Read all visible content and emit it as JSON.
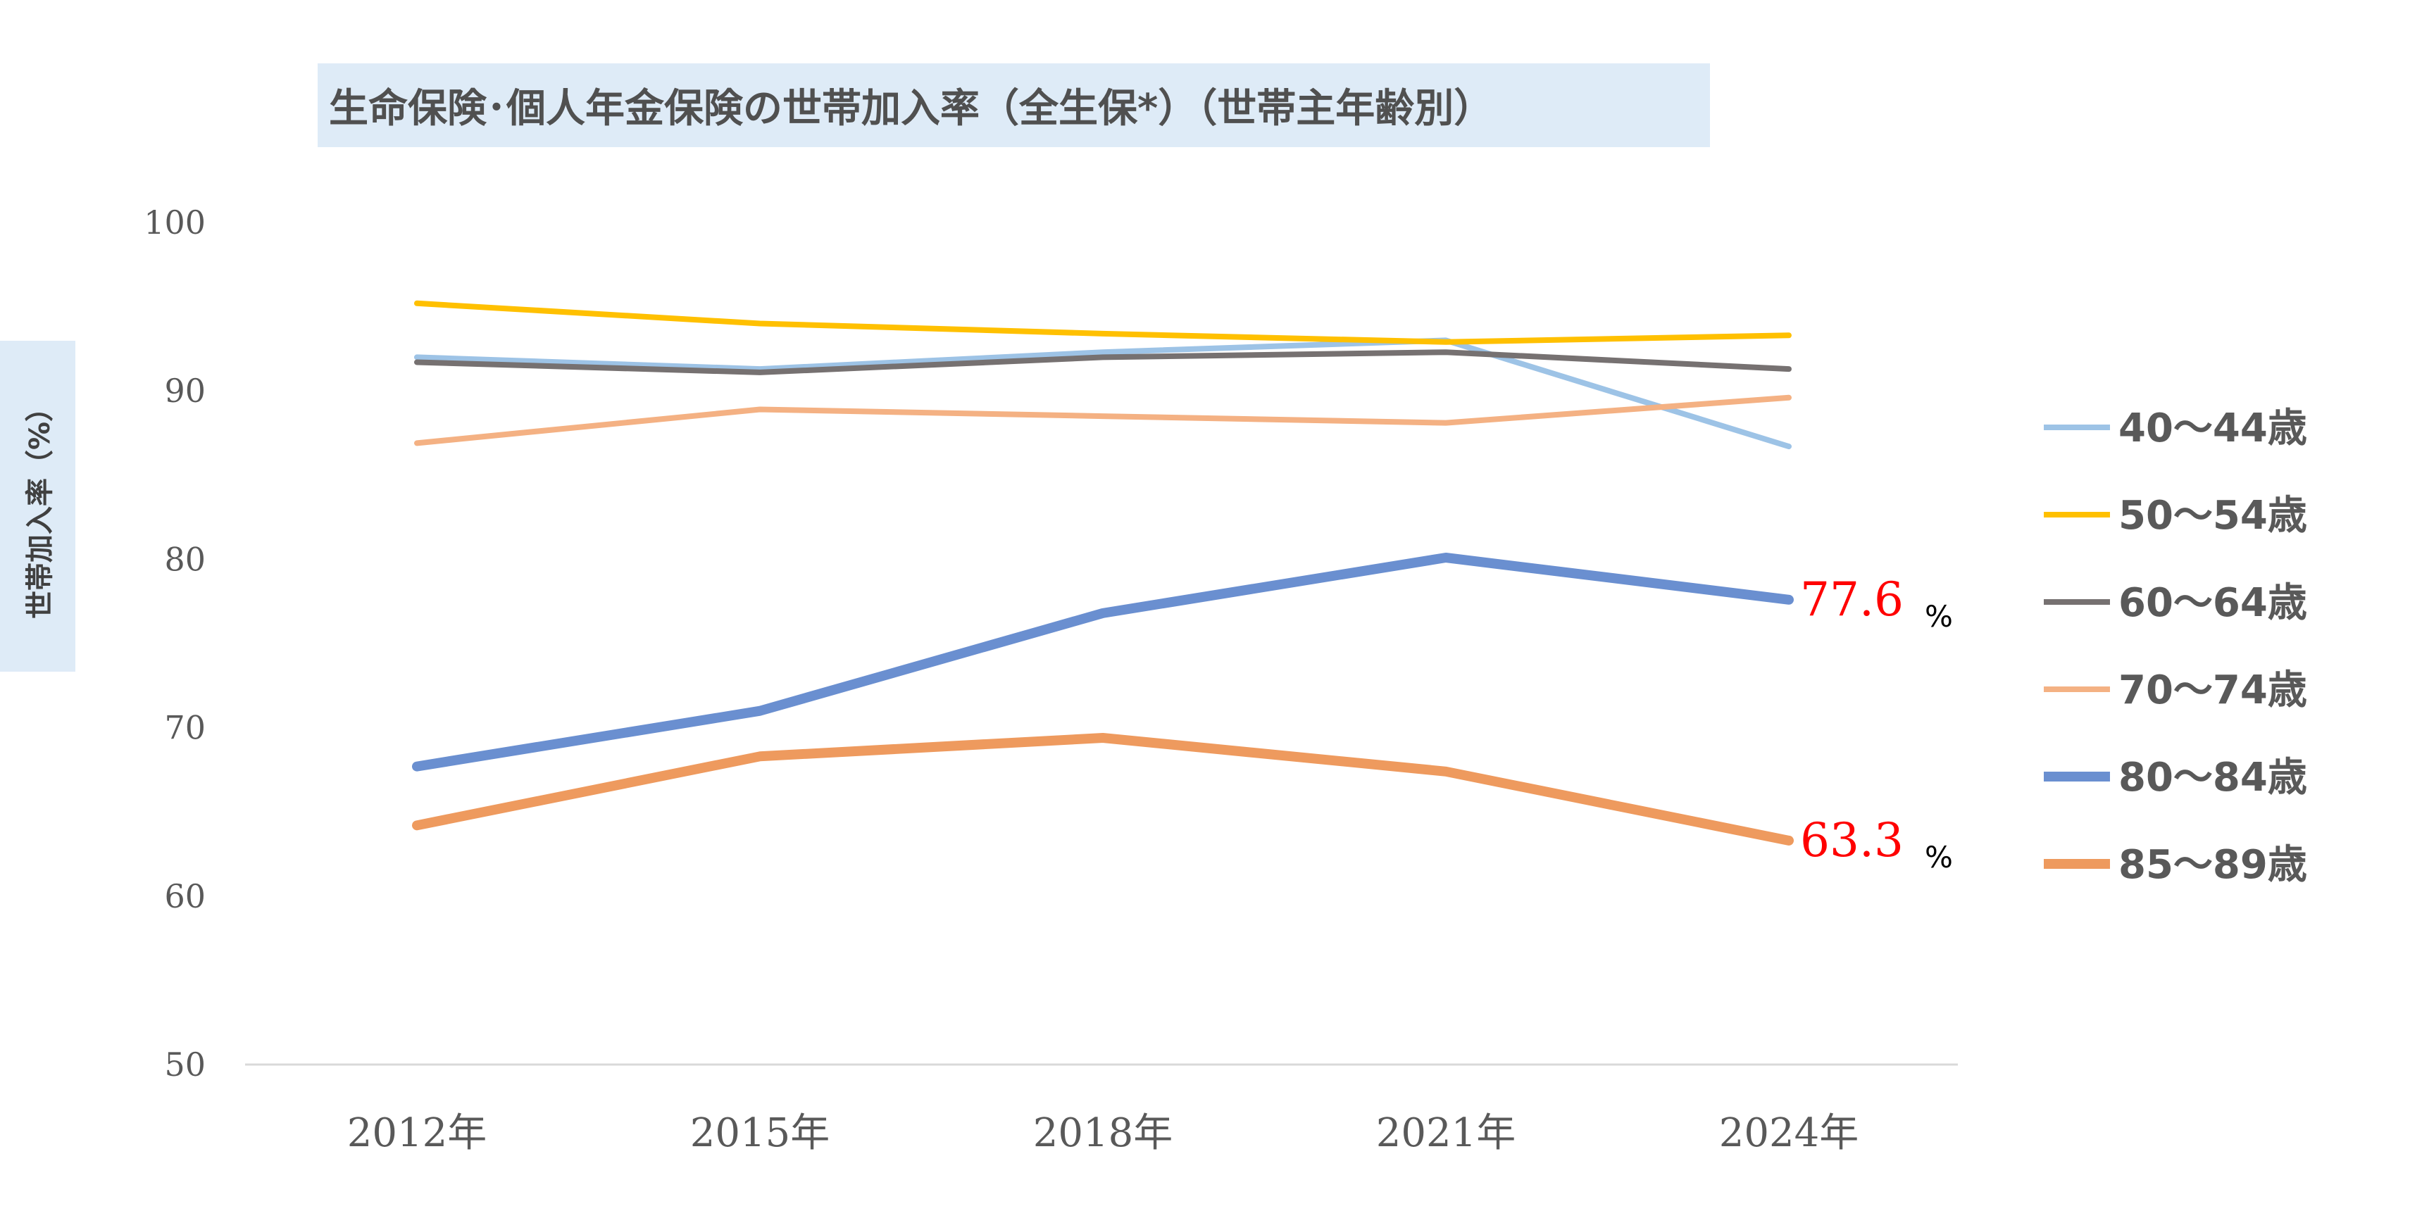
{
  "chart_data": {
    "type": "line",
    "title": "生命保険･個人年金保険の世帯加入率（全生保*）（世帯主年齢別）",
    "ylabel": "世帯加入率（%）",
    "xlabel": "",
    "categories": [
      "2012年",
      "2015年",
      "2018年",
      "2021年",
      "2024年"
    ],
    "ylim": [
      50,
      100
    ],
    "yticks": [
      50,
      60,
      70,
      80,
      90,
      100
    ],
    "grid": false,
    "legend_position": "right",
    "series": [
      {
        "name": "40～44歳",
        "color": "#9dc3e6",
        "emphasis": false,
        "values": [
          92.0,
          91.3,
          92.3,
          93.0,
          86.7
        ]
      },
      {
        "name": "50～54歳",
        "color": "#ffc000",
        "emphasis": false,
        "values": [
          95.2,
          94.0,
          93.4,
          92.9,
          93.3
        ]
      },
      {
        "name": "60～64歳",
        "color": "#767171",
        "emphasis": false,
        "values": [
          91.7,
          91.1,
          92.0,
          92.3,
          91.3
        ]
      },
      {
        "name": "70～74歳",
        "color": "#f4b183",
        "emphasis": false,
        "values": [
          86.9,
          88.9,
          88.5,
          88.1,
          89.6
        ]
      },
      {
        "name": "80～84歳",
        "color": "#6a8fd0",
        "emphasis": true,
        "values": [
          67.7,
          71.0,
          76.8,
          80.1,
          77.6
        ]
      },
      {
        "name": "85～89歳",
        "color": "#ee9a5e",
        "emphasis": true,
        "values": [
          64.2,
          68.3,
          69.4,
          67.4,
          63.3
        ]
      }
    ],
    "annotations": [
      {
        "series": "80～84歳",
        "value": "77.6",
        "unit": "%",
        "color": "#ff0000"
      },
      {
        "series": "85～89歳",
        "value": "63.3",
        "unit": "%",
        "color": "#ff0000"
      }
    ]
  }
}
